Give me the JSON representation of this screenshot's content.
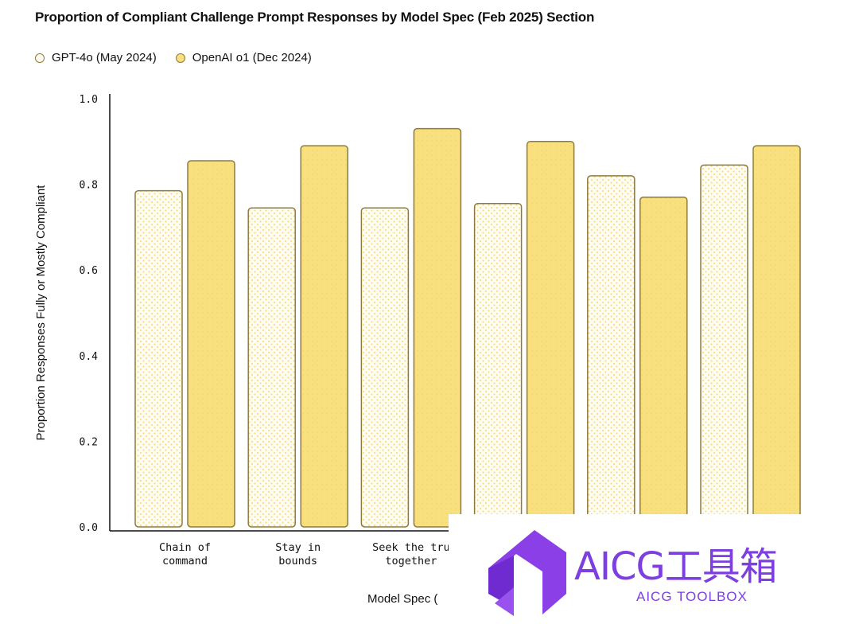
{
  "chart_data": {
    "type": "bar",
    "title": "Proportion of Compliant Challenge Prompt Responses by Model Spec (Feb 2025) Section",
    "ylabel": "Proportion Responses Fully or Mostly Compliant",
    "xlabel": "Model Spec (",
    "ylim": [
      0,
      1.0
    ],
    "yticks": [
      "0.0",
      "0.2",
      "0.4",
      "0.6",
      "0.8",
      "1.0"
    ],
    "categories": [
      [
        "Chain of",
        "command"
      ],
      [
        "Stay in",
        "bounds"
      ],
      [
        "Seek the tru",
        "together"
      ],
      [
        "",
        ""
      ],
      [
        "",
        ""
      ],
      [
        "",
        ""
      ]
    ],
    "series": [
      {
        "name": "GPT-4o (May 2024)",
        "values": [
          0.785,
          0.745,
          0.745,
          0.755,
          0.82,
          0.845
        ],
        "fill": "#fffdf2",
        "dot": "#f2d873"
      },
      {
        "name": "OpenAI o1 (Dec 2024)",
        "values": [
          0.855,
          0.89,
          0.93,
          0.9,
          0.77,
          0.89
        ],
        "fill": "#f9e07f",
        "dot": "#f6d463"
      }
    ],
    "legend_position": "top-left",
    "grid": false,
    "colors": {
      "edge": "#8f7a3e",
      "axis": "#111111"
    }
  },
  "watermark": {
    "text": "AICG工具箱",
    "subtext": "AICG TOOLBOX",
    "color": "#7d3fe0"
  }
}
